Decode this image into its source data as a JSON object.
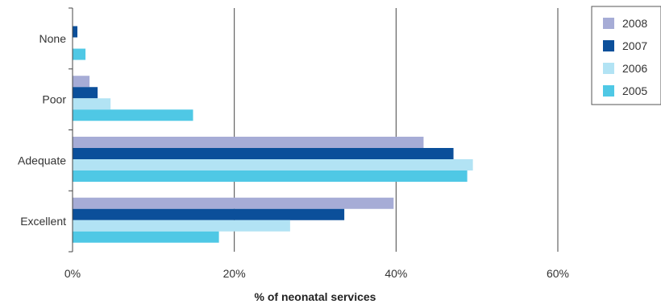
{
  "chart_data": {
    "type": "bar",
    "orientation": "horizontal",
    "categories": [
      "None",
      "Poor",
      "Adequate",
      "Excellent"
    ],
    "series": [
      {
        "name": "2008",
        "color": "#a6acd6",
        "values": [
          0,
          2.1,
          43.4,
          39.7
        ]
      },
      {
        "name": "2007",
        "color": "#0b4f9a",
        "values": [
          0.6,
          3.1,
          47.1,
          33.6
        ]
      },
      {
        "name": "2006",
        "color": "#b2e3f4",
        "values": [
          0,
          4.7,
          49.5,
          26.9
        ]
      },
      {
        "name": "2005",
        "color": "#4fc8e5",
        "values": [
          1.6,
          14.9,
          48.8,
          18.1
        ]
      }
    ],
    "xlim": [
      0,
      60
    ],
    "xticks": [
      "0%",
      "20%",
      "40%",
      "60%"
    ],
    "xlabel": "% of neonatal services",
    "ylabel": "",
    "grid": "vertical",
    "legend_position": "top-right"
  }
}
